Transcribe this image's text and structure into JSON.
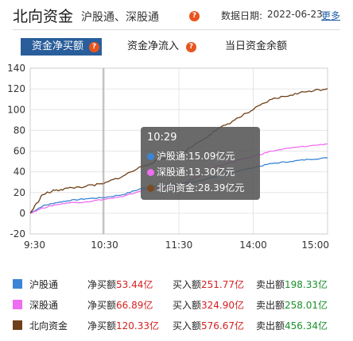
{
  "header": {
    "title": "北向资金",
    "subtitle": "沪股通、深股通",
    "date_label": "数据日期:",
    "date_value": "2022-06-23",
    "more_link": "更多"
  },
  "tabs": [
    {
      "label": "资金净买额",
      "active": true
    },
    {
      "label": "资金净流入",
      "active": false
    },
    {
      "label": "当日资金余额",
      "active": false
    }
  ],
  "tooltip": {
    "time": "10:29",
    "rows": [
      {
        "label": "沪股通:15.09亿元",
        "color": "#3b85d6"
      },
      {
        "label": "深股通:13.30亿元",
        "color": "#ef6df0"
      },
      {
        "label": "北向资金:28.39亿元",
        "color": "#7a4a22"
      }
    ]
  },
  "legend": [
    {
      "name": "沪股通",
      "net_label": "净买额",
      "net_value": "53.44亿",
      "buy_label": "买入额",
      "buy_value": "251.77亿",
      "sell_label": "卖出额",
      "sell_value": "198.33亿",
      "color": "#3b85d6"
    },
    {
      "name": "深股通",
      "net_label": "净买额",
      "net_value": "66.89亿",
      "buy_label": "买入额",
      "buy_value": "324.90亿",
      "sell_label": "卖出额",
      "sell_value": "258.01亿",
      "color": "#ef6df0"
    },
    {
      "name": "北向资金",
      "net_label": "净买额",
      "net_value": "120.33亿",
      "buy_label": "买入额",
      "buy_value": "576.67亿",
      "sell_label": "卖出额",
      "sell_value": "456.34亿",
      "color": "#6e3f18"
    }
  ],
  "chart_data": {
    "type": "line",
    "x_ticks": [
      "9:30",
      "10:30",
      "11:30",
      "14:00",
      "15:00"
    ],
    "y_ticks": [
      -20,
      0,
      20,
      40,
      60,
      80,
      100,
      120,
      140
    ],
    "ylim": [
      -20,
      140
    ],
    "grid": true,
    "crosshair_x": "10:29",
    "series": [
      {
        "name": "沪股通",
        "color": "#3b85d6",
        "x": [
          "9:30",
          "9:40",
          "9:50",
          "10:00",
          "10:15",
          "10:29",
          "10:45",
          "11:00",
          "11:15",
          "11:30",
          "13:15",
          "13:30",
          "13:45",
          "14:00",
          "14:15",
          "14:30",
          "14:45",
          "15:00"
        ],
        "values": [
          0,
          7,
          10,
          12,
          14,
          15.09,
          18,
          24,
          27,
          28,
          31,
          35,
          40,
          44,
          48,
          50,
          52,
          53.44
        ]
      },
      {
        "name": "深股通",
        "color": "#ef6df0",
        "x": [
          "9:30",
          "9:40",
          "9:50",
          "10:00",
          "10:15",
          "10:29",
          "10:45",
          "11:00",
          "11:15",
          "11:30",
          "13:15",
          "13:30",
          "13:45",
          "14:00",
          "14:15",
          "14:30",
          "14:45",
          "15:00"
        ],
        "values": [
          0,
          5,
          8,
          10,
          11,
          13.3,
          16,
          22,
          25,
          27,
          35,
          45,
          50,
          55,
          60,
          63,
          65,
          66.89
        ]
      },
      {
        "name": "北向资金",
        "color": "#6e3f18",
        "x": [
          "9:30",
          "9:40",
          "9:50",
          "10:00",
          "10:15",
          "10:29",
          "10:45",
          "11:00",
          "11:15",
          "11:30",
          "13:15",
          "13:30",
          "13:45",
          "14:00",
          "14:15",
          "14:30",
          "14:45",
          "15:00"
        ],
        "values": [
          0,
          18,
          22,
          24,
          26,
          28.39,
          36,
          45,
          52,
          56,
          68,
          80,
          90,
          100,
          110,
          114,
          118,
          120.33
        ]
      }
    ]
  }
}
